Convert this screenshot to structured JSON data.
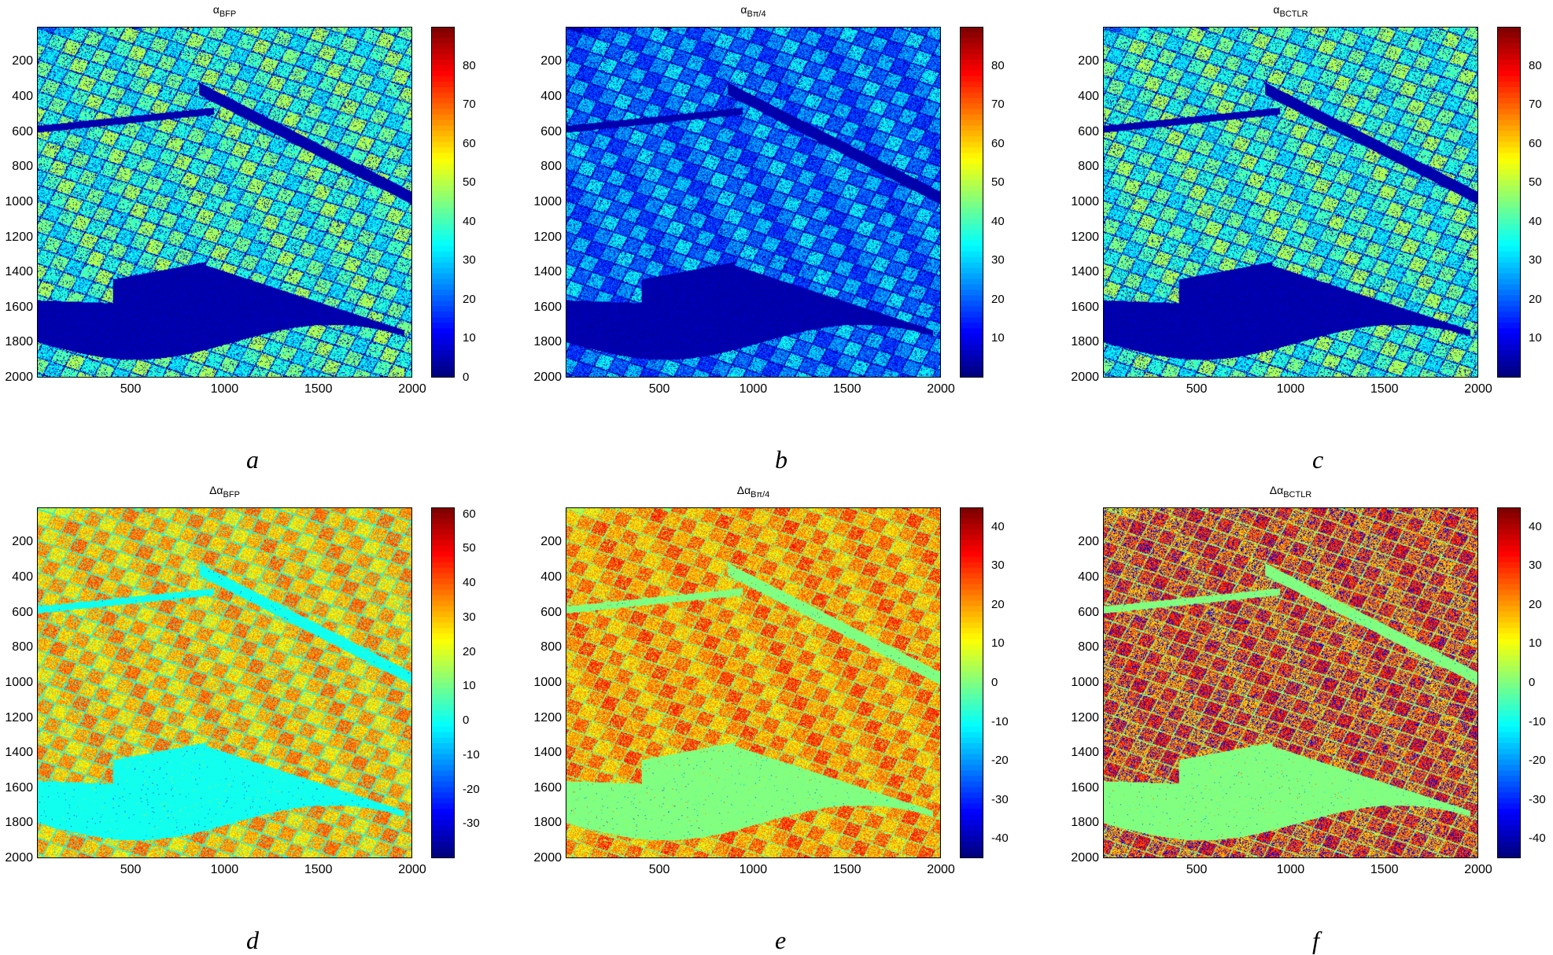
{
  "chart_data": [
    {
      "type": "heatmap",
      "label": "a",
      "title_main": "α",
      "title_sub": "BFP",
      "x_ticks": [
        "500",
        "1000",
        "1500",
        "2000"
      ],
      "y_ticks": [
        "200",
        "400",
        "600",
        "800",
        "1000",
        "1200",
        "1400",
        "1600",
        "1800",
        "2000"
      ],
      "xlim": [
        1,
        2000
      ],
      "ylim": [
        1,
        2000
      ],
      "colorbar": {
        "min": 0,
        "max": 90,
        "ticks": [
          "80",
          "70",
          "60",
          "50",
          "40",
          "30",
          "20",
          "10",
          "0"
        ],
        "colormap": "jet"
      },
      "field": {
        "typical_value": 40,
        "dark_water_value": 2
      }
    },
    {
      "type": "heatmap",
      "label": "b",
      "title_main": "α",
      "title_sub": "Bπ/4",
      "x_ticks": [
        "500",
        "1000",
        "1500",
        "2000"
      ],
      "y_ticks": [
        "200",
        "400",
        "600",
        "800",
        "1000",
        "1200",
        "1400",
        "1600",
        "1800",
        "2000"
      ],
      "xlim": [
        1,
        2000
      ],
      "ylim": [
        1,
        2000
      ],
      "colorbar": {
        "min": 0,
        "max": 90,
        "ticks": [
          "80",
          "70",
          "60",
          "50",
          "40",
          "30",
          "20",
          "10"
        ],
        "colormap": "jet"
      },
      "field": {
        "typical_value": 24,
        "dark_water_value": 2
      }
    },
    {
      "type": "heatmap",
      "label": "c",
      "title_main": "α",
      "title_sub": "BCTLR",
      "x_ticks": [
        "500",
        "1000",
        "1500",
        "2000"
      ],
      "y_ticks": [
        "200",
        "400",
        "600",
        "800",
        "1000",
        "1200",
        "1400",
        "1600",
        "1800",
        "2000"
      ],
      "xlim": [
        1,
        2000
      ],
      "ylim": [
        1,
        2000
      ],
      "colorbar": {
        "min": 0,
        "max": 90,
        "ticks": [
          "80",
          "70",
          "60",
          "50",
          "40",
          "30",
          "20",
          "10"
        ],
        "colormap": "jet"
      },
      "field": {
        "typical_value": 40,
        "dark_water_value": 2
      }
    },
    {
      "type": "heatmap",
      "label": "d",
      "title_main": "Δα",
      "title_sub": "BFP",
      "x_ticks": [
        "500",
        "1000",
        "1500",
        "2000"
      ],
      "y_ticks": [
        "200",
        "400",
        "600",
        "800",
        "1000",
        "1200",
        "1400",
        "1600",
        "1800",
        "2000"
      ],
      "xlim": [
        1,
        2000
      ],
      "ylim": [
        1,
        2000
      ],
      "colorbar": {
        "min": -40,
        "max": 62,
        "ticks": [
          "60",
          "50",
          "40",
          "30",
          "20",
          "10",
          "0",
          "-10",
          "-20",
          "-30"
        ],
        "colormap": "jet"
      },
      "field": {
        "typical_value": 32,
        "water_value": 0
      }
    },
    {
      "type": "heatmap",
      "label": "e",
      "title_main": "Δα",
      "title_sub": "Bπ/4",
      "x_ticks": [
        "500",
        "1000",
        "1500",
        "2000"
      ],
      "y_ticks": [
        "200",
        "400",
        "600",
        "800",
        "1000",
        "1200",
        "1400",
        "1600",
        "1800",
        "2000"
      ],
      "xlim": [
        1,
        2000
      ],
      "ylim": [
        1,
        2000
      ],
      "colorbar": {
        "min": -45,
        "max": 45,
        "ticks": [
          "40",
          "30",
          "20",
          "10",
          "0",
          "-10",
          "-20",
          "-30",
          "-40"
        ],
        "colormap": "jet"
      },
      "field": {
        "typical_value": 22,
        "water_value": 0
      }
    },
    {
      "type": "heatmap",
      "label": "f",
      "title_main": "Δα",
      "title_sub": "BCTLR",
      "x_ticks": [
        "500",
        "1000",
        "1500",
        "2000"
      ],
      "y_ticks": [
        "200",
        "400",
        "600",
        "800",
        "1000",
        "1200",
        "1400",
        "1600",
        "1800",
        "2000"
      ],
      "xlim": [
        1,
        2000
      ],
      "ylim": [
        1,
        2000
      ],
      "colorbar": {
        "min": -45,
        "max": 45,
        "ticks": [
          "40",
          "30",
          "20",
          "10",
          "0",
          "-10",
          "-20",
          "-30",
          "-40"
        ],
        "colormap": "jet"
      },
      "field": {
        "typical_value": 25,
        "water_value": 0
      }
    }
  ]
}
